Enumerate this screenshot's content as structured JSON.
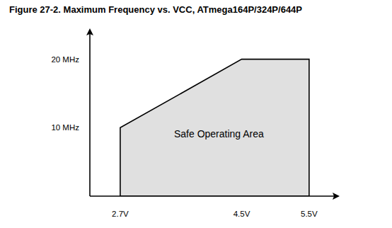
{
  "chart_data": {
    "type": "area",
    "title": "Figure 27-2.   Maximum Frequency vs. VCC, ATmega164P/324P/644P",
    "annotation": "Safe Operating Area",
    "x": [
      2.7,
      4.5,
      5.5
    ],
    "values": [
      10,
      20,
      20
    ],
    "color": "#e0e0e0",
    "xlim": [
      2.25,
      5.9
    ],
    "ylim": [
      0,
      24
    ],
    "xticks": [
      {
        "value": 2.7,
        "label": "2.7V"
      },
      {
        "value": 4.5,
        "label": "4.5V"
      },
      {
        "value": 5.5,
        "label": "5.5V"
      }
    ],
    "yticks": [
      {
        "value": 10,
        "label": "10 MHz"
      },
      {
        "value": 20,
        "label": "20 MHz"
      }
    ],
    "grid": false
  }
}
